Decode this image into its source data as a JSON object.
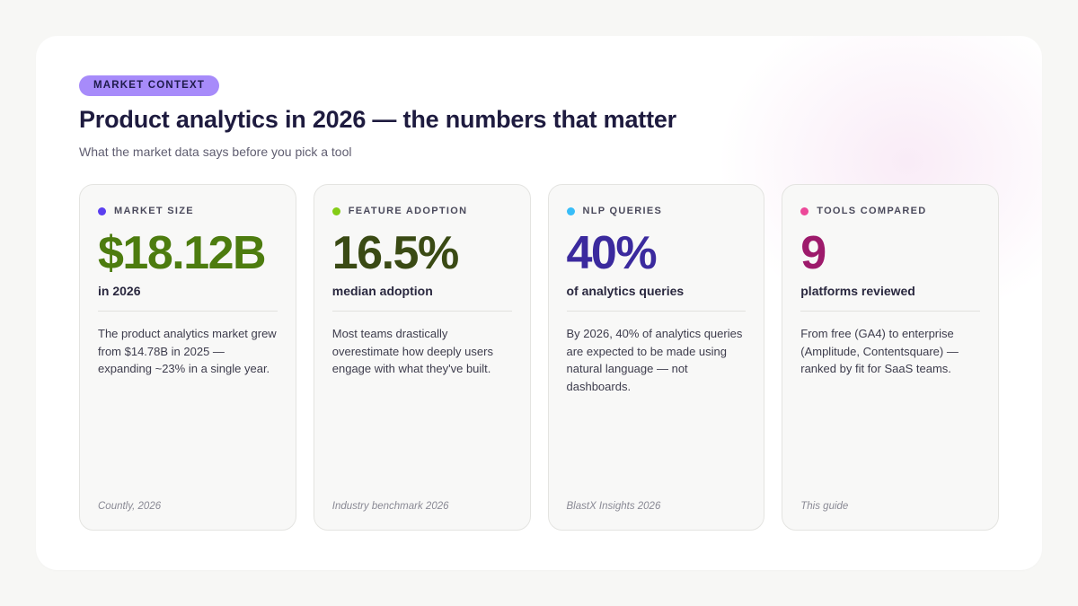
{
  "badge": "MARKET CONTEXT",
  "title": "Product analytics in 2026 — the numbers that matter",
  "subtitle": "What the market data says before you pick a tool",
  "cards": [
    {
      "label": "MARKET SIZE",
      "dot_color": "#5b3ff0",
      "value": "$18.12B",
      "value_color": "#4d7c0f",
      "unit": "in 2026",
      "description": "The product analytics market grew from $14.78B in 2025 — expanding ~23% in a single year.",
      "source": "Countly, 2026"
    },
    {
      "label": "FEATURE ADOPTION",
      "dot_color": "#84cc16",
      "value": "16.5%",
      "value_color": "#3a4a14",
      "unit": "median adoption",
      "description": "Most teams drastically overestimate how deeply users engage with what they've built.",
      "source": "Industry benchmark 2026"
    },
    {
      "label": "NLP QUERIES",
      "dot_color": "#38bdf8",
      "value": "40%",
      "value_color": "#3b2a9e",
      "unit": "of analytics queries",
      "description": "By 2026, 40% of analytics queries are expected to be made using natural language — not dashboards.",
      "source": "BlastX Insights 2026"
    },
    {
      "label": "TOOLS COMPARED",
      "dot_color": "#ec4899",
      "value": "9",
      "value_color": "#9d1a6b",
      "unit": "platforms reviewed",
      "description": "From free (GA4) to enterprise (Amplitude, Contentsquare) — ranked by fit for SaaS teams.",
      "source": "This guide"
    }
  ]
}
